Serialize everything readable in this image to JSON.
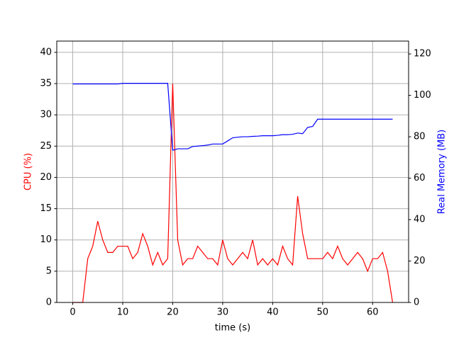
{
  "chart_data": {
    "type": "line",
    "x_label": "time (s)",
    "y_label": "CPU (%)",
    "y2_label": "Real Memory (MB)",
    "x": [
      0,
      1,
      2,
      3,
      4,
      5,
      6,
      7,
      8,
      9,
      10,
      11,
      12,
      13,
      14,
      15,
      16,
      17,
      18,
      19,
      20,
      21,
      22,
      23,
      24,
      25,
      26,
      27,
      28,
      29,
      30,
      31,
      32,
      33,
      34,
      35,
      36,
      37,
      38,
      39,
      40,
      41,
      42,
      43,
      44,
      45,
      46,
      47,
      48,
      49,
      50,
      51,
      52,
      53,
      54,
      55,
      56,
      57,
      58,
      59,
      60,
      61,
      62,
      63,
      64
    ],
    "series": [
      {
        "name": "CPU (%)",
        "color": "#ff0000",
        "axis": "y",
        "values": [
          0,
          0,
          0,
          7,
          9,
          13,
          10,
          8,
          8,
          9,
          9,
          9,
          7,
          8,
          11,
          9,
          6,
          8,
          6,
          7,
          35,
          10,
          6,
          7,
          7,
          9,
          8,
          7,
          7,
          6,
          10,
          7,
          6,
          7,
          8,
          7,
          10,
          6,
          7,
          6,
          7,
          6,
          9,
          7,
          6,
          17,
          11,
          7,
          7,
          7,
          7,
          8,
          7,
          9,
          7,
          6,
          7,
          8,
          7,
          5,
          7,
          7,
          8,
          5,
          0
        ]
      },
      {
        "name": "Real Memory (MB)",
        "color": "#0000ff",
        "axis": "y2",
        "values": [
          105.5,
          105.5,
          105.5,
          105.5,
          105.5,
          105.5,
          105.5,
          105.5,
          105.5,
          105.5,
          105.8,
          105.8,
          105.8,
          105.8,
          105.8,
          105.8,
          105.8,
          105.8,
          105.8,
          105.8,
          73.5,
          74.2,
          74.2,
          74.2,
          75.3,
          75.5,
          75.7,
          76,
          76.5,
          76.5,
          76.5,
          78,
          79.5,
          79.8,
          80,
          80,
          80.2,
          80.3,
          80.5,
          80.5,
          80.5,
          80.7,
          81,
          81,
          81.2,
          81.8,
          81.5,
          84.5,
          85,
          88.5,
          88.5,
          88.5,
          88.5,
          88.5,
          88.5,
          88.5,
          88.5,
          88.5,
          88.5,
          88.5,
          88.5,
          88.5,
          88.5,
          88.5,
          88.5
        ]
      }
    ],
    "xlim": [
      -3.2,
      67.2
    ],
    "xticks": [
      0,
      10,
      20,
      30,
      40,
      50,
      60
    ],
    "ylim": [
      0,
      41.8
    ],
    "yticks": [
      0,
      5,
      10,
      15,
      20,
      25,
      30,
      35,
      40
    ],
    "y2lim": [
      0,
      126.2
    ],
    "y2ticks": [
      0,
      20,
      40,
      60,
      80,
      100,
      120
    ],
    "grid": true
  }
}
